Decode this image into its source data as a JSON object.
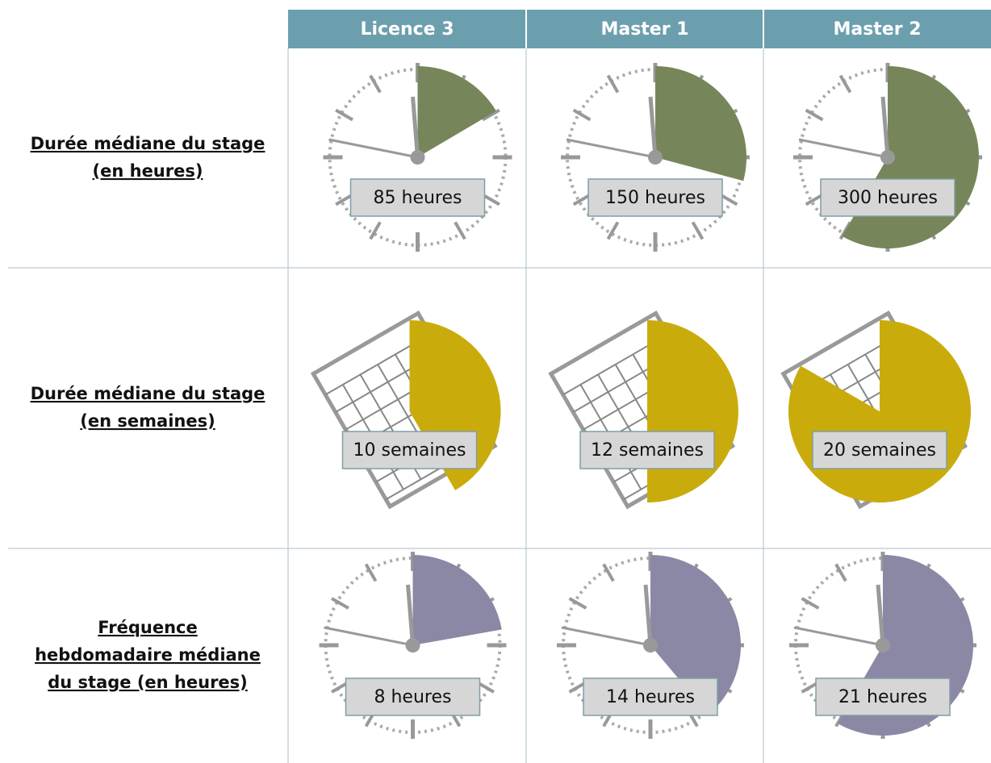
{
  "header": {
    "columns": [
      "Licence 3",
      "Master 1",
      "Master 2"
    ]
  },
  "rows": [
    {
      "label": [
        "Durée médiane du stage",
        "(en heures)"
      ],
      "color": "#76865a",
      "cells": [
        {
          "value": 85,
          "label": "85 heures"
        },
        {
          "value": 150,
          "label": "150 heures"
        },
        {
          "value": 300,
          "label": "300 heures"
        }
      ]
    },
    {
      "label": [
        "Durée médiane du stage",
        "(en semaines)"
      ],
      "color": "#c9ac0c",
      "cells": [
        {
          "value": 10,
          "label": "10 semaines"
        },
        {
          "value": 12,
          "label": "12 semaines"
        },
        {
          "value": 20,
          "label": "20 semaines"
        }
      ]
    },
    {
      "label": [
        "Fréquence",
        "hebdomadaire médiane",
        "du stage (en heures)"
      ],
      "color": "#8b88a6",
      "cells": [
        {
          "value": 8,
          "label": "8 heures"
        },
        {
          "value": 14,
          "label": "14 heures"
        },
        {
          "value": 21,
          "label": "21 heures"
        }
      ]
    }
  ]
}
